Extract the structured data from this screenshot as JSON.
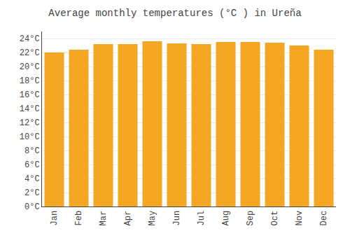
{
  "chart_data": {
    "type": "bar",
    "title": "Average monthly temperatures (°C ) in Ureña",
    "categories": [
      "Jan",
      "Feb",
      "Mar",
      "Apr",
      "May",
      "Jun",
      "Jul",
      "Aug",
      "Sep",
      "Oct",
      "Nov",
      "Dec"
    ],
    "values": [
      22.0,
      22.4,
      23.2,
      23.2,
      23.6,
      23.3,
      23.2,
      23.5,
      23.5,
      23.4,
      23.0,
      22.4
    ],
    "color": "#F5A623",
    "ylim": [
      0,
      25
    ],
    "yticks": [
      {
        "value": 0,
        "label": "0°C"
      },
      {
        "value": 2,
        "label": "2°C"
      },
      {
        "value": 4,
        "label": "4°C"
      },
      {
        "value": 6,
        "label": "6°C"
      },
      {
        "value": 8,
        "label": "8°C"
      },
      {
        "value": 10,
        "label": "10°C"
      },
      {
        "value": 12,
        "label": "12°C"
      },
      {
        "value": 14,
        "label": "14°C"
      },
      {
        "value": 16,
        "label": "16°C"
      },
      {
        "value": 18,
        "label": "18°C"
      },
      {
        "value": 20,
        "label": "20°C"
      },
      {
        "value": 22,
        "label": "22°C"
      },
      {
        "value": 24,
        "label": "24°C"
      }
    ],
    "grid": true
  }
}
